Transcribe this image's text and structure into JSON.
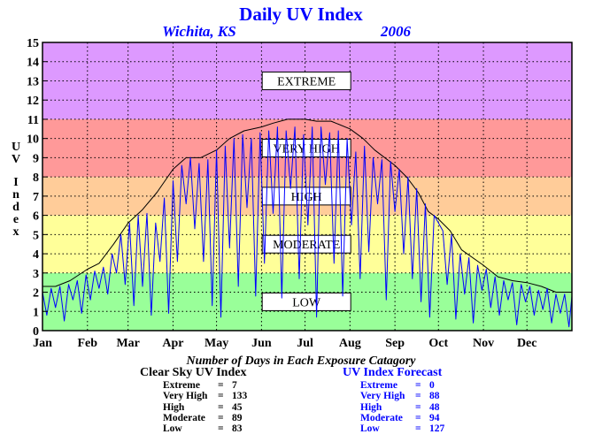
{
  "chart_data": {
    "type": "line",
    "title": "Daily UV Index",
    "location": "Wichita, KS",
    "year": "2006",
    "ylabel": "UV Index",
    "ylim": [
      0,
      15
    ],
    "yticks": [
      "0",
      "1",
      "2",
      "3",
      "4",
      "5",
      "6",
      "7",
      "8",
      "9",
      "10",
      "11",
      "12",
      "13",
      "14",
      "15"
    ],
    "xlim": [
      1,
      366
    ],
    "xticks": [
      {
        "label": "Jan",
        "day": 1
      },
      {
        "label": "Feb",
        "day": 32
      },
      {
        "label": "Mar",
        "day": 60
      },
      {
        "label": "Apr",
        "day": 91
      },
      {
        "label": "May",
        "day": 121
      },
      {
        "label": "Jun",
        "day": 152
      },
      {
        "label": "Jul",
        "day": 182
      },
      {
        "label": "Aug",
        "day": 213
      },
      {
        "label": "Sep",
        "day": 244
      },
      {
        "label": "Oct",
        "day": 274
      },
      {
        "label": "Nov",
        "day": 305
      },
      {
        "label": "Dec",
        "day": 335
      }
    ],
    "grid": true,
    "bands": [
      {
        "label": "LOW",
        "from": 0,
        "to": 3,
        "color": "#99ff99"
      },
      {
        "label": "MODERATE",
        "from": 3,
        "to": 6,
        "color": "#ffff99"
      },
      {
        "label": "HIGH",
        "from": 6,
        "to": 8,
        "color": "#ffcc99"
      },
      {
        "label": "VERY HIGH",
        "from": 8,
        "to": 11,
        "color": "#ff9999"
      },
      {
        "label": "EXTREME",
        "from": 11,
        "to": 15,
        "color": "#dd99ff"
      }
    ],
    "series": [
      {
        "name": "Clear Sky UV Index",
        "color": "#000000",
        "values": [
          [
            1,
            2.3
          ],
          [
            10,
            2.3
          ],
          [
            20,
            2.6
          ],
          [
            32,
            3.2
          ],
          [
            40,
            3.5
          ],
          [
            50,
            4.5
          ],
          [
            60,
            5.6
          ],
          [
            70,
            6.3
          ],
          [
            80,
            7.2
          ],
          [
            91,
            8.4
          ],
          [
            100,
            9.0
          ],
          [
            110,
            9.0
          ],
          [
            121,
            9.4
          ],
          [
            130,
            10.0
          ],
          [
            140,
            10.4
          ],
          [
            152,
            10.6
          ],
          [
            160,
            10.8
          ],
          [
            170,
            11.0
          ],
          [
            182,
            11.0
          ],
          [
            190,
            10.9
          ],
          [
            200,
            10.9
          ],
          [
            213,
            10.5
          ],
          [
            222,
            10.0
          ],
          [
            230,
            9.4
          ],
          [
            244,
            8.6
          ],
          [
            252,
            8.0
          ],
          [
            260,
            7.2
          ],
          [
            267,
            6.2
          ],
          [
            274,
            5.8
          ],
          [
            282,
            5.2
          ],
          [
            290,
            4.2
          ],
          [
            305,
            3.4
          ],
          [
            315,
            2.8
          ],
          [
            325,
            2.6
          ],
          [
            335,
            2.5
          ],
          [
            345,
            2.3
          ],
          [
            355,
            2.0
          ],
          [
            366,
            2.0
          ]
        ]
      },
      {
        "name": "UV Index Forecast",
        "color": "#0000ff",
        "values": [
          [
            1,
            2.0
          ],
          [
            4,
            0.8
          ],
          [
            7,
            2.2
          ],
          [
            10,
            1.2
          ],
          [
            13,
            2.3
          ],
          [
            16,
            0.5
          ],
          [
            19,
            2.4
          ],
          [
            22,
            1.6
          ],
          [
            25,
            2.6
          ],
          [
            28,
            0.9
          ],
          [
            31,
            2.9
          ],
          [
            34,
            1.6
          ],
          [
            37,
            3.1
          ],
          [
            40,
            2.2
          ],
          [
            43,
            3.3
          ],
          [
            46,
            1.9
          ],
          [
            49,
            4.0
          ],
          [
            52,
            3.0
          ],
          [
            55,
            5.0
          ],
          [
            58,
            2.4
          ],
          [
            61,
            5.6
          ],
          [
            64,
            1.3
          ],
          [
            67,
            6.0
          ],
          [
            70,
            2.3
          ],
          [
            73,
            6.1
          ],
          [
            76,
            0.8
          ],
          [
            79,
            5.6
          ],
          [
            82,
            3.6
          ],
          [
            85,
            6.9
          ],
          [
            88,
            0.9
          ],
          [
            91,
            7.8
          ],
          [
            94,
            3.6
          ],
          [
            97,
            8.6
          ],
          [
            100,
            6.6
          ],
          [
            103,
            9.0
          ],
          [
            106,
            5.3
          ],
          [
            109,
            8.7
          ],
          [
            112,
            3.6
          ],
          [
            115,
            8.9
          ],
          [
            118,
            1.3
          ],
          [
            121,
            9.4
          ],
          [
            124,
            0.7
          ],
          [
            127,
            9.6
          ],
          [
            130,
            4.3
          ],
          [
            133,
            10.0
          ],
          [
            136,
            2.3
          ],
          [
            139,
            10.2
          ],
          [
            142,
            6.4
          ],
          [
            145,
            10.0
          ],
          [
            148,
            1.8
          ],
          [
            151,
            10.3
          ],
          [
            154,
            3.5
          ],
          [
            157,
            10.4
          ],
          [
            160,
            6.1
          ],
          [
            163,
            10.6
          ],
          [
            166,
            1.7
          ],
          [
            169,
            10.4
          ],
          [
            172,
            7.4
          ],
          [
            175,
            10.6
          ],
          [
            178,
            2.7
          ],
          [
            181,
            10.2
          ],
          [
            184,
            5.5
          ],
          [
            187,
            10.6
          ],
          [
            190,
            0.7
          ],
          [
            193,
            10.6
          ],
          [
            196,
            7.6
          ],
          [
            199,
            10.3
          ],
          [
            202,
            3.5
          ],
          [
            205,
            10.4
          ],
          [
            208,
            1.8
          ],
          [
            211,
            10.0
          ],
          [
            214,
            5.5
          ],
          [
            217,
            9.3
          ],
          [
            220,
            2.7
          ],
          [
            223,
            9.6
          ],
          [
            226,
            4.1
          ],
          [
            229,
            9.0
          ],
          [
            232,
            6.6
          ],
          [
            235,
            8.9
          ],
          [
            238,
            1.6
          ],
          [
            241,
            8.8
          ],
          [
            244,
            6.2
          ],
          [
            247,
            8.4
          ],
          [
            250,
            4.0
          ],
          [
            253,
            8.0
          ],
          [
            256,
            2.7
          ],
          [
            259,
            7.4
          ],
          [
            262,
            1.5
          ],
          [
            265,
            6.6
          ],
          [
            268,
            0.7
          ],
          [
            271,
            6.0
          ],
          [
            274,
            5.6
          ],
          [
            277,
            5.2
          ],
          [
            280,
            2.4
          ],
          [
            283,
            5.0
          ],
          [
            286,
            0.6
          ],
          [
            289,
            4.0
          ],
          [
            292,
            1.9
          ],
          [
            295,
            3.8
          ],
          [
            298,
            0.4
          ],
          [
            301,
            3.4
          ],
          [
            304,
            2.1
          ],
          [
            307,
            3.2
          ],
          [
            310,
            1.2
          ],
          [
            313,
            2.8
          ],
          [
            316,
            0.8
          ],
          [
            319,
            2.6
          ],
          [
            322,
            1.6
          ],
          [
            325,
            2.5
          ],
          [
            328,
            0.3
          ],
          [
            331,
            2.4
          ],
          [
            334,
            1.5
          ],
          [
            337,
            2.3
          ],
          [
            340,
            0.8
          ],
          [
            343,
            2.1
          ],
          [
            346,
            1.1
          ],
          [
            349,
            2.2
          ],
          [
            352,
            0.4
          ],
          [
            355,
            1.9
          ],
          [
            358,
            0.9
          ],
          [
            361,
            1.9
          ],
          [
            364,
            0.2
          ],
          [
            366,
            1.8
          ]
        ]
      }
    ]
  },
  "footer": {
    "caption": "Number of Days in Each Exposure Catagory",
    "clear_sky": {
      "title": "Clear Sky UV Index",
      "rows": [
        {
          "label": "Extreme",
          "eq": "=",
          "value": "7"
        },
        {
          "label": "Very High",
          "eq": "=",
          "value": "133"
        },
        {
          "label": "High",
          "eq": "=",
          "value": "45"
        },
        {
          "label": "Moderate",
          "eq": "=",
          "value": "89"
        },
        {
          "label": "Low",
          "eq": "=",
          "value": "83"
        }
      ]
    },
    "forecast": {
      "title": "UV Index Forecast",
      "rows": [
        {
          "label": "Extreme",
          "eq": "=",
          "value": "0"
        },
        {
          "label": "Very High",
          "eq": "=",
          "value": "88"
        },
        {
          "label": "High",
          "eq": "=",
          "value": "48"
        },
        {
          "label": "Moderate",
          "eq": "=",
          "value": "94"
        },
        {
          "label": "Low",
          "eq": "=",
          "value": "127"
        }
      ]
    }
  },
  "colors": {
    "title": "#0000ff",
    "clear_sky_text": "#000000",
    "forecast_text": "#0000ff"
  }
}
